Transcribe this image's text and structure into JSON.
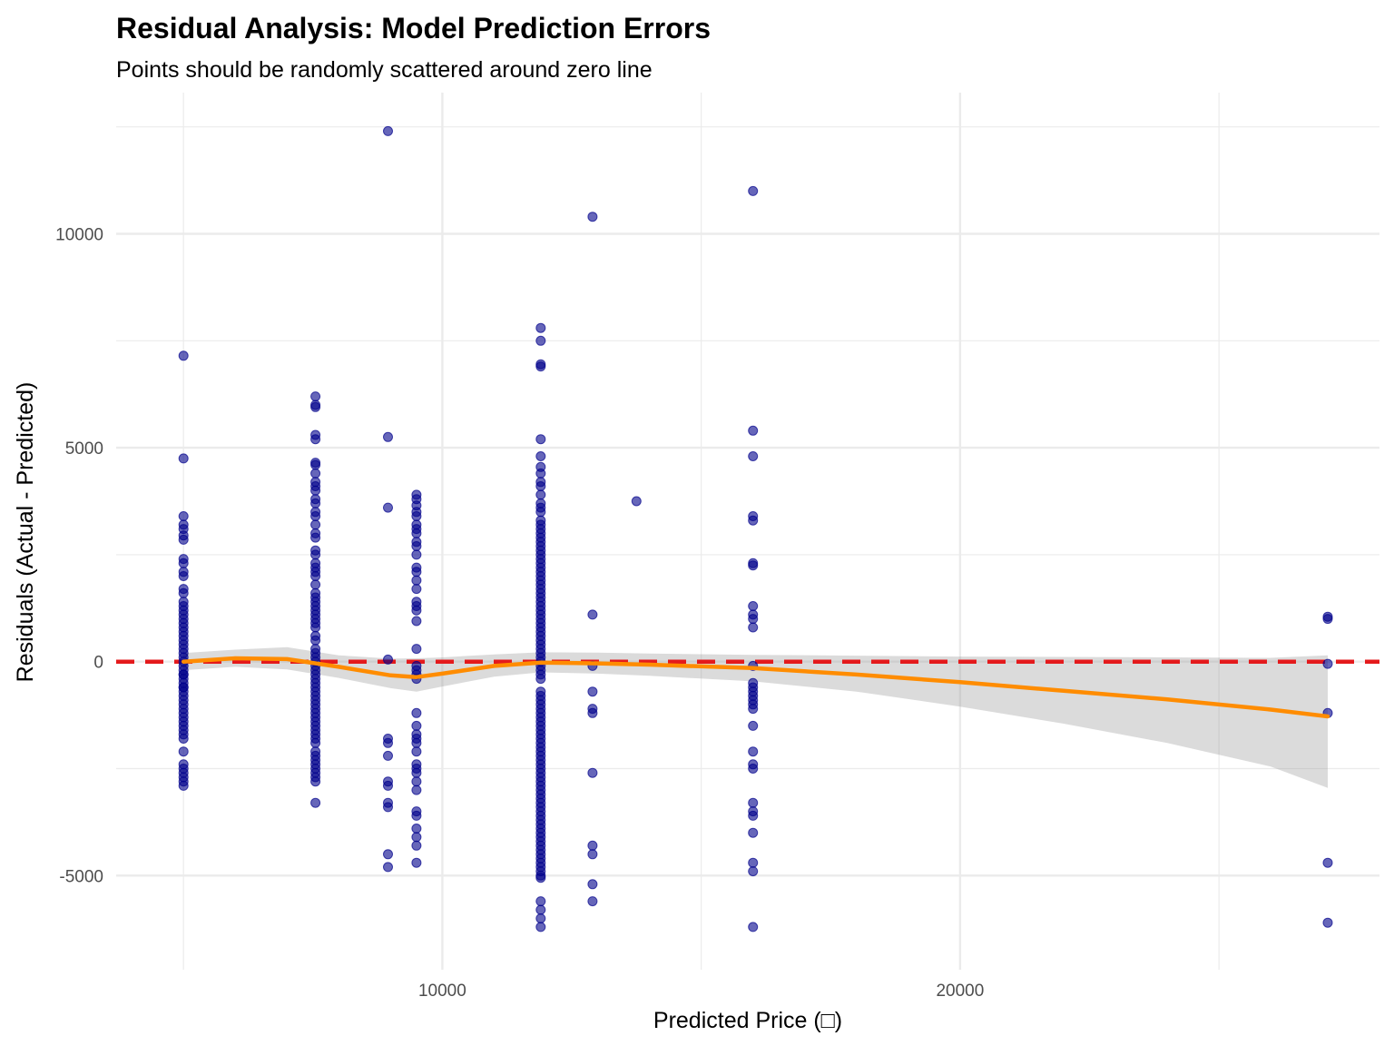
{
  "chart_data": {
    "type": "scatter",
    "title": "Residual Analysis: Model Prediction Errors",
    "subtitle": "Points should be randomly scattered around zero line",
    "xlabel": "Predicted Price (□)",
    "ylabel": "Residuals (Actual - Predicted)",
    "xlim": [
      3700,
      28100
    ],
    "ylim": [
      -7200,
      13300
    ],
    "x_ticks": [
      {
        "value": 10000,
        "label": "10000"
      },
      {
        "value": 20000,
        "label": "20000"
      }
    ],
    "y_ticks": [
      {
        "value": -5000,
        "label": "-5000"
      },
      {
        "value": 0,
        "label": "0"
      },
      {
        "value": 5000,
        "label": "5000"
      },
      {
        "value": 10000,
        "label": "10000"
      }
    ],
    "grid": true,
    "colors": {
      "points": "#00008B",
      "smooth_line": "#FF8C00",
      "confidence_band": "#999999",
      "zero_line": "#E41A1C",
      "grid": "#EBEBEB"
    },
    "reference_line": {
      "y": 0,
      "style": "dashed"
    },
    "series": [
      {
        "type": "points",
        "x": [
          5000,
          5000,
          5000,
          5000,
          5000,
          5000,
          5000,
          5000,
          5000,
          5000,
          5000,
          5000,
          5000,
          5000,
          5000,
          5000,
          5000,
          5000,
          5000,
          5000,
          5000,
          5000,
          5000,
          5000,
          5000,
          5000,
          5000,
          5000,
          5000,
          5000,
          5000,
          5000,
          5000,
          5000,
          5000,
          5000,
          5000,
          5000,
          5000,
          5000,
          5000,
          5000,
          5000,
          5000,
          5000,
          5000,
          5000,
          5000,
          5000,
          5000,
          5000,
          5000,
          5000,
          5000,
          5000,
          7550,
          7550,
          7550,
          7550,
          7550,
          7550,
          7550,
          7550,
          7550,
          7550,
          7550,
          7550,
          7550,
          7550,
          7550,
          7550,
          7550,
          7550,
          7550,
          7550,
          7550,
          7550,
          7550,
          7550,
          7550,
          7550,
          7550,
          7550,
          7550,
          7550,
          7550,
          7550,
          7550,
          7550,
          7550,
          7550,
          7550,
          7550,
          7550,
          7550,
          7550,
          7550,
          7550,
          7550,
          7550,
          7550,
          7550,
          7550,
          7550,
          7550,
          7550,
          7550,
          7550,
          7550,
          7550,
          7550,
          7550,
          7550,
          7550,
          7550,
          7550,
          7550,
          7550,
          7550,
          7550,
          7550,
          7550,
          7550,
          8950,
          8950,
          8950,
          8950,
          8950,
          8950,
          8950,
          8950,
          8950,
          8950,
          8950,
          8950,
          8950,
          9500,
          9500,
          9500,
          9500,
          9500,
          9500,
          9500,
          9500,
          9500,
          9500,
          9500,
          9500,
          9500,
          9500,
          9500,
          9500,
          9500,
          9500,
          9500,
          9500,
          9500,
          9500,
          9500,
          9500,
          9500,
          9500,
          9500,
          9500,
          9500,
          9500,
          9500,
          9500,
          9500,
          9500,
          9500,
          9500,
          9500,
          9500,
          9500,
          9500,
          9500,
          11900,
          11900,
          11900,
          11900,
          11900,
          11900,
          11900,
          11900,
          11900,
          11900,
          11900,
          11900,
          11900,
          11900,
          11900,
          11900,
          11900,
          11900,
          11900,
          11900,
          11900,
          11900,
          11900,
          11900,
          11900,
          11900,
          11900,
          11900,
          11900,
          11900,
          11900,
          11900,
          11900,
          11900,
          11900,
          11900,
          11900,
          11900,
          11900,
          11900,
          11900,
          11900,
          11900,
          11900,
          11900,
          11900,
          11900,
          11900,
          11900,
          11900,
          11900,
          11900,
          11900,
          11900,
          11900,
          11900,
          11900,
          11900,
          11900,
          11900,
          11900,
          11900,
          11900,
          11900,
          11900,
          11900,
          11900,
          11900,
          11900,
          11900,
          11900,
          11900,
          11900,
          11900,
          11900,
          11900,
          11900,
          11900,
          11900,
          11900,
          11900,
          11900,
          11900,
          11900,
          11900,
          11900,
          11900,
          11900,
          11900,
          11900,
          11900,
          11900,
          11900,
          11900,
          11900,
          11900,
          11900,
          11900,
          11900,
          11900,
          11900,
          12900,
          12900,
          12900,
          12900,
          12900,
          12900,
          12900,
          12900,
          12900,
          12900,
          12900,
          13750,
          16000,
          16000,
          16000,
          16000,
          16000,
          16000,
          16000,
          16000,
          16000,
          16000,
          16000,
          16000,
          16000,
          16000,
          16000,
          16000,
          16000,
          16000,
          16000,
          16000,
          16000,
          16000,
          16000,
          16000,
          16000,
          16000,
          16000,
          16000,
          16000,
          16000,
          27100,
          27100,
          27100,
          27100,
          27100,
          27100
        ],
        "y": [
          7150,
          4750,
          3400,
          3200,
          3100,
          2950,
          2850,
          2400,
          2300,
          2100,
          2000,
          1700,
          1600,
          1400,
          1300,
          1200,
          1100,
          1000,
          900,
          800,
          700,
          600,
          500,
          400,
          300,
          200,
          100,
          0,
          -100,
          -200,
          -300,
          -400,
          -500,
          -600,
          -700,
          -800,
          -900,
          -1000,
          -1100,
          -1200,
          -1300,
          -1400,
          -1500,
          -1600,
          -1700,
          -1800,
          -2100,
          -2400,
          -2500,
          -2600,
          -2700,
          -2800,
          -2900,
          -300,
          -600,
          6200,
          6000,
          5950,
          5300,
          5200,
          4650,
          4600,
          4400,
          4200,
          4100,
          4000,
          3800,
          3700,
          3500,
          3400,
          3200,
          3000,
          2900,
          2600,
          2500,
          2300,
          2200,
          2100,
          2000,
          1800,
          1600,
          1500,
          1400,
          1300,
          1200,
          1100,
          1000,
          900,
          800,
          600,
          500,
          300,
          200,
          100,
          0,
          -100,
          -200,
          -300,
          -400,
          -500,
          -600,
          -700,
          -800,
          -900,
          -1000,
          -1100,
          -1200,
          -1300,
          -1400,
          -1500,
          -1600,
          -1700,
          -1800,
          -1900,
          -2100,
          -2200,
          -2300,
          -2400,
          -2500,
          -2600,
          -2700,
          -2800,
          -3300,
          12400,
          5250,
          3600,
          50,
          -1800,
          -1900,
          -2200,
          -2800,
          -2900,
          -3300,
          -3400,
          -4500,
          -4800,
          3900,
          3800,
          3650,
          3500,
          3400,
          3200,
          3100,
          3000,
          2800,
          2700,
          2500,
          2200,
          2100,
          1900,
          1700,
          1400,
          1300,
          1200,
          950,
          300,
          -100,
          -200,
          -300,
          -400,
          -1200,
          -1500,
          -1700,
          -1800,
          -1900,
          -2100,
          -2400,
          -2500,
          -2600,
          -2800,
          -3000,
          -3500,
          -3600,
          -3900,
          -4100,
          -4300,
          -4700,
          7800,
          7500,
          6950,
          6900,
          5200,
          4800,
          4550,
          4400,
          4200,
          4100,
          3900,
          3700,
          3600,
          3500,
          3300,
          3200,
          3100,
          3000,
          2900,
          2800,
          2700,
          2600,
          2500,
          2400,
          2300,
          2200,
          2100,
          2000,
          1900,
          1800,
          1700,
          1600,
          1500,
          1400,
          1300,
          1200,
          1100,
          1000,
          900,
          800,
          700,
          600,
          500,
          400,
          300,
          200,
          100,
          0,
          -100,
          -200,
          -300,
          -400,
          -700,
          -800,
          -900,
          -1000,
          -1100,
          -1200,
          -1300,
          -1400,
          -1500,
          -1600,
          -1700,
          -1800,
          -1900,
          -2000,
          -2100,
          -2200,
          -2300,
          -2400,
          -2500,
          -2600,
          -2700,
          -2800,
          -2900,
          -3000,
          -3100,
          -3200,
          -3300,
          -3400,
          -3500,
          -3600,
          -3700,
          -3800,
          -3900,
          -4000,
          -4100,
          -4200,
          -4300,
          -4400,
          -4500,
          -4600,
          -4700,
          -4800,
          -4900,
          -5000,
          -5050,
          -5600,
          -5800,
          -6000,
          -6200,
          10400,
          1100,
          -100,
          -700,
          -1100,
          -1200,
          -2600,
          -4300,
          -4500,
          -5200,
          -5600,
          3750,
          11000,
          5400,
          4800,
          3400,
          3300,
          2300,
          2250,
          1300,
          1100,
          1000,
          800,
          -100,
          -500,
          -600,
          -700,
          -800,
          -900,
          -1000,
          -1100,
          -1500,
          -2100,
          -2400,
          -2500,
          -3300,
          -3500,
          -3600,
          -4000,
          -4700,
          -4900,
          -6200,
          1050,
          1000,
          -50,
          -1200,
          -4700,
          -6100
        ]
      },
      {
        "type": "smooth",
        "x": [
          5000,
          6000,
          7000,
          8000,
          9000,
          9500,
          10000,
          11000,
          11900,
          13000,
          14000,
          16000,
          18000,
          20000,
          22000,
          24000,
          26000,
          27100
        ],
        "y": [
          0,
          80,
          60,
          -120,
          -320,
          -360,
          -280,
          -100,
          -20,
          -40,
          -70,
          -150,
          -300,
          -480,
          -680,
          -880,
          -1120,
          -1280
        ],
        "upper": [
          200,
          280,
          340,
          150,
          70,
          80,
          100,
          170,
          220,
          210,
          190,
          160,
          140,
          120,
          110,
          100,
          90,
          150
        ],
        "lower": [
          -200,
          -120,
          -180,
          -380,
          -620,
          -700,
          -580,
          -350,
          -250,
          -280,
          -330,
          -460,
          -700,
          -1050,
          -1450,
          -1900,
          -2450,
          -2950
        ]
      }
    ]
  }
}
